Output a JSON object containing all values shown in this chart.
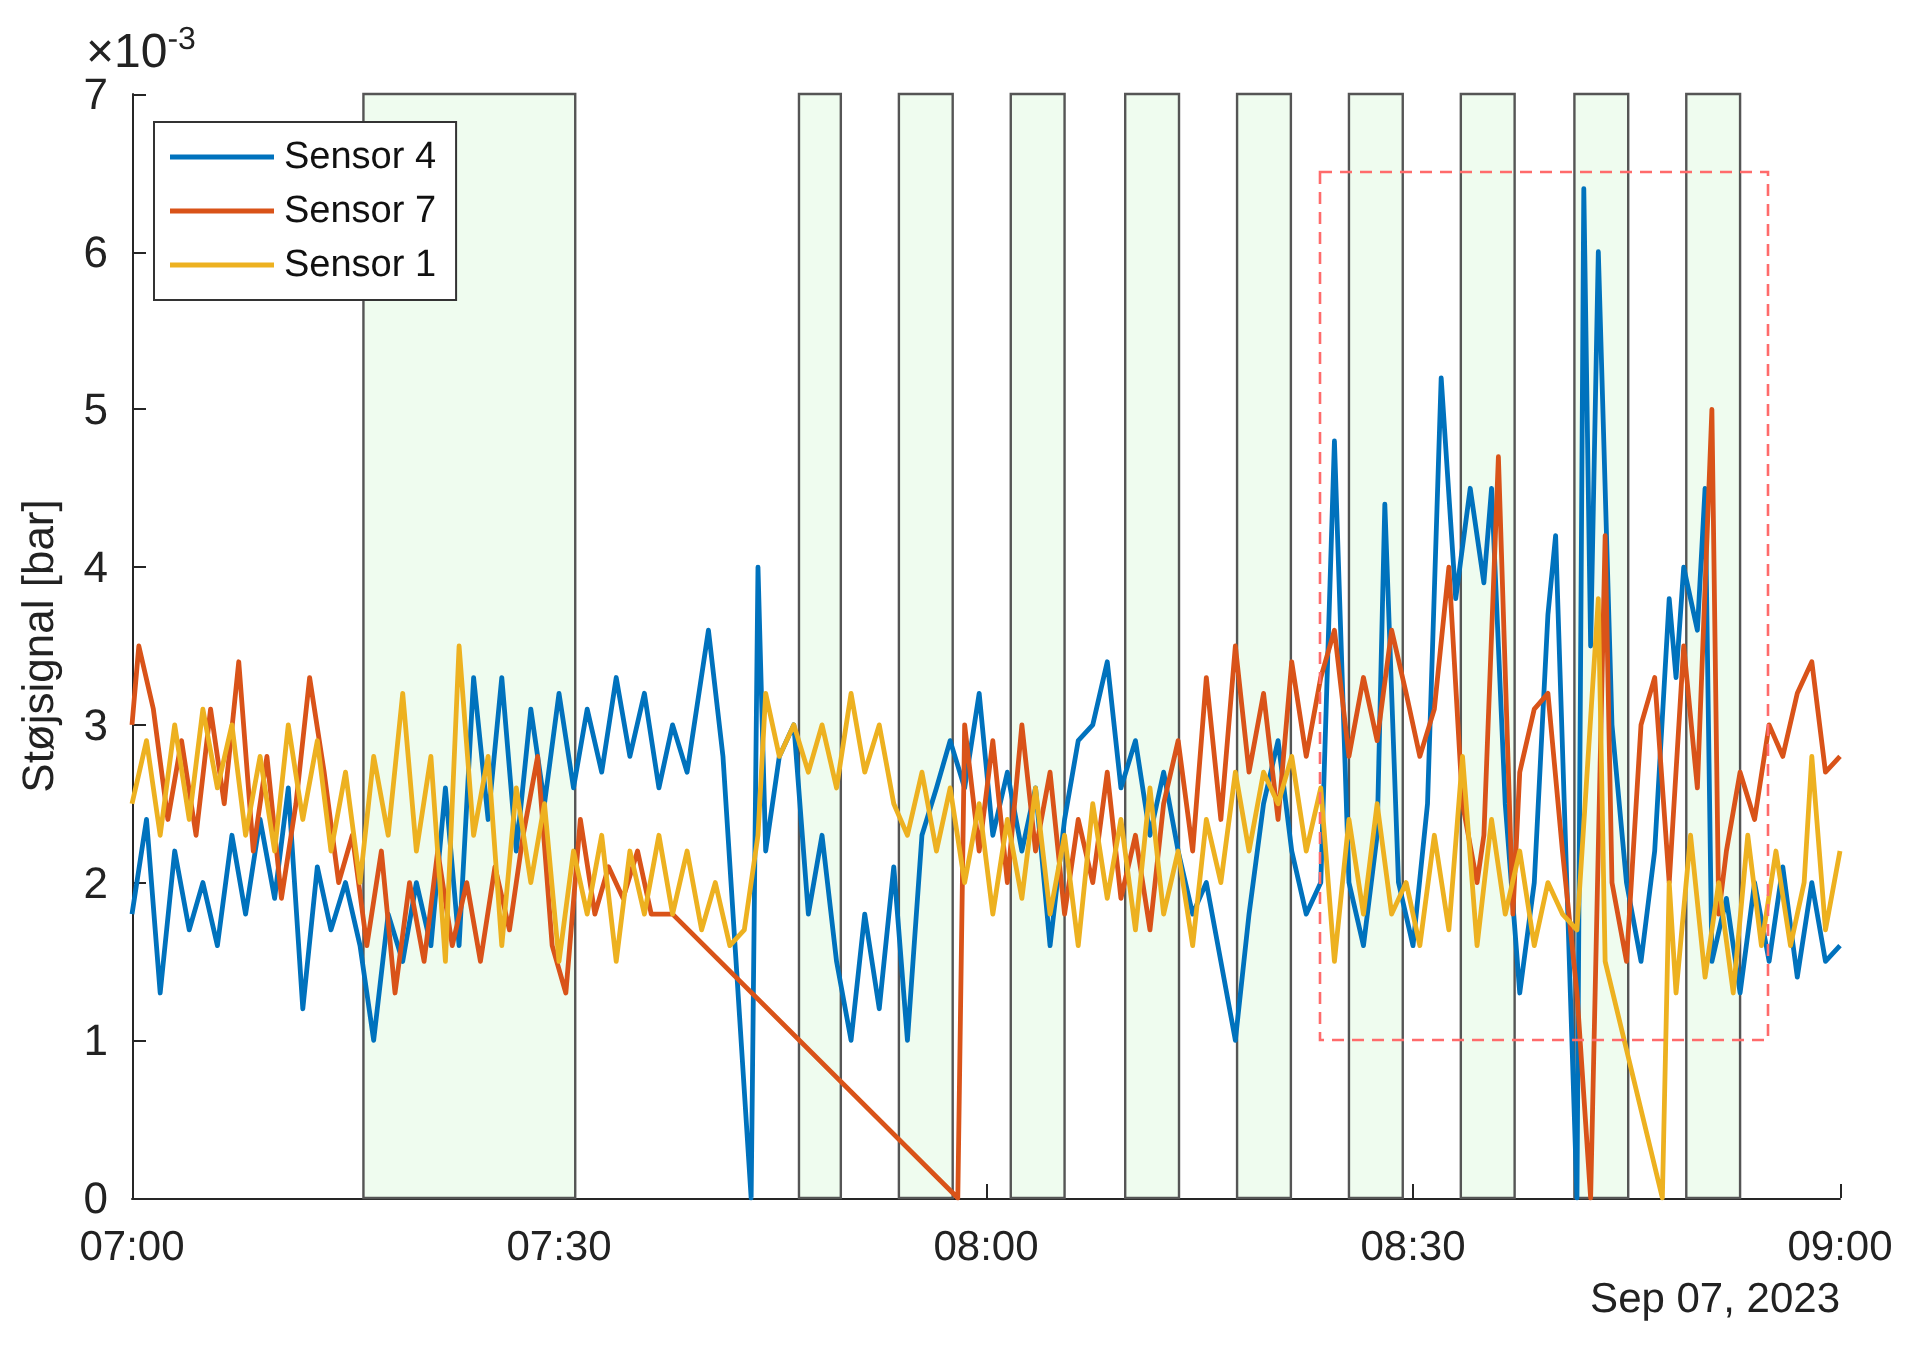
{
  "chart_data": {
    "type": "line",
    "ylabel": "Støjsignal [bar]",
    "annotations": [
      "×10$^{-3}$",
      "Sep 07, 2023"
    ],
    "xlim": [
      7,
      9
    ],
    "xticks": [
      {
        "value": 7,
        "label": "07:00"
      },
      {
        "value": 7.5,
        "label": "07:30"
      },
      {
        "value": 8,
        "label": "08:00"
      },
      {
        "value": 8.5,
        "label": "08:30"
      },
      {
        "value": 9,
        "label": "09:00"
      }
    ],
    "ylim": [
      0,
      7
    ],
    "yticks": [
      0,
      1,
      2,
      3,
      4,
      5,
      6,
      7
    ],
    "grid": false,
    "legend": "top left",
    "marker": "none",
    "line_style": "solid",
    "bands": [
      {
        "axis": "x",
        "from": 7.271,
        "to": 7.519,
        "color": "#effcef"
      },
      {
        "axis": "x",
        "from": 7.781,
        "to": 7.83,
        "color": "#effcef"
      },
      {
        "axis": "x",
        "from": 7.898,
        "to": 7.961,
        "color": "#effcef"
      },
      {
        "axis": "x",
        "from": 8.029,
        "to": 8.092,
        "color": "#effcef"
      },
      {
        "axis": "x",
        "from": 8.163,
        "to": 8.226,
        "color": "#effcef"
      },
      {
        "axis": "x",
        "from": 8.294,
        "to": 8.357,
        "color": "#effcef"
      },
      {
        "axis": "x",
        "from": 8.425,
        "to": 8.488,
        "color": "#effcef"
      },
      {
        "axis": "x",
        "from": 8.556,
        "to": 8.619,
        "color": "#effcef"
      },
      {
        "axis": "x",
        "from": 8.689,
        "to": 8.752,
        "color": "#effcef"
      },
      {
        "axis": "x",
        "from": 8.82,
        "to": 8.883,
        "color": "#effcef"
      }
    ],
    "series": [
      {
        "name": "Sensor 4",
        "color": "#0072bd",
        "x": [
          7.0,
          7.017,
          7.033,
          7.05,
          7.067,
          7.083,
          7.1,
          7.117,
          7.133,
          7.15,
          7.167,
          7.183,
          7.2,
          7.217,
          7.233,
          7.25,
          7.267,
          7.283,
          7.3,
          7.317,
          7.333,
          7.35,
          7.367,
          7.383,
          7.4,
          7.417,
          7.433,
          7.45,
          7.467,
          7.483,
          7.5,
          7.517,
          7.533,
          7.55,
          7.567,
          7.583,
          7.6,
          7.617,
          7.633,
          7.65,
          7.675,
          7.692,
          7.725,
          7.733,
          7.742,
          7.758,
          7.775,
          7.792,
          7.808,
          7.825,
          7.842,
          7.858,
          7.875,
          7.892,
          7.908,
          7.925,
          7.942,
          7.958,
          7.975,
          7.992,
          8.008,
          8.025,
          8.042,
          8.058,
          8.075,
          8.092,
          8.108,
          8.125,
          8.142,
          8.158,
          8.175,
          8.192,
          8.208,
          8.225,
          8.242,
          8.258,
          8.275,
          8.292,
          8.308,
          8.325,
          8.342,
          8.358,
          8.375,
          8.392,
          8.408,
          8.425,
          8.442,
          8.458,
          8.467,
          8.483,
          8.5,
          8.517,
          8.533,
          8.55,
          8.567,
          8.583,
          8.592,
          8.608,
          8.625,
          8.642,
          8.658,
          8.667,
          8.692,
          8.7,
          8.708,
          8.717,
          8.733,
          8.75,
          8.767,
          8.783,
          8.8,
          8.808,
          8.817,
          8.833,
          8.842,
          8.85,
          8.867,
          8.883,
          8.9,
          8.917,
          8.933,
          8.95,
          8.967,
          8.983,
          9.0
        ],
        "values": [
          1.8,
          2.4,
          1.3,
          2.2,
          1.7,
          2.0,
          1.6,
          2.3,
          1.8,
          2.4,
          1.9,
          2.6,
          1.2,
          2.1,
          1.7,
          2.0,
          1.6,
          1.0,
          1.8,
          1.5,
          2.0,
          1.6,
          2.6,
          1.6,
          3.3,
          2.4,
          3.3,
          2.2,
          3.1,
          2.5,
          3.2,
          2.6,
          3.1,
          2.7,
          3.3,
          2.8,
          3.2,
          2.6,
          3.0,
          2.7,
          3.6,
          2.8,
          0,
          4.0,
          2.2,
          2.8,
          3.0,
          1.8,
          2.3,
          1.5,
          1.0,
          1.8,
          1.2,
          2.1,
          1.0,
          2.3,
          2.6,
          2.9,
          2.6,
          3.2,
          2.3,
          2.7,
          2.2,
          2.6,
          1.6,
          2.4,
          2.9,
          3.0,
          3.4,
          2.6,
          2.9,
          2.3,
          2.7,
          2.2,
          1.8,
          2.0,
          1.5,
          1.0,
          1.8,
          2.5,
          2.9,
          2.2,
          1.8,
          2.0,
          4.8,
          2.0,
          1.6,
          2.3,
          4.4,
          2.0,
          1.6,
          2.5,
          5.2,
          3.8,
          4.5,
          3.9,
          4.5,
          2.5,
          1.3,
          2.0,
          3.7,
          4.2,
          0,
          6.4,
          3.5,
          6.0,
          3.0,
          2.0,
          1.5,
          2.2,
          3.8,
          3.3,
          4.0,
          3.6,
          4.5,
          1.5,
          1.9,
          1.3,
          2.0,
          1.5,
          2.1,
          1.4,
          2.0,
          1.5,
          1.6
        ]
      },
      {
        "name": "Sensor 7",
        "color": "#d95319",
        "x": [
          7.0,
          7.008,
          7.025,
          7.042,
          7.058,
          7.075,
          7.092,
          7.108,
          7.125,
          7.142,
          7.158,
          7.175,
          7.192,
          7.208,
          7.225,
          7.242,
          7.258,
          7.275,
          7.292,
          7.308,
          7.325,
          7.342,
          7.358,
          7.375,
          7.392,
          7.408,
          7.425,
          7.442,
          7.458,
          7.475,
          7.492,
          7.508,
          7.525,
          7.542,
          7.558,
          7.575,
          7.592,
          7.608,
          7.633,
          7.967,
          7.975,
          7.992,
          8.008,
          8.025,
          8.042,
          8.058,
          8.075,
          8.092,
          8.108,
          8.125,
          8.142,
          8.158,
          8.175,
          8.192,
          8.208,
          8.225,
          8.242,
          8.258,
          8.275,
          8.292,
          8.308,
          8.325,
          8.342,
          8.358,
          8.375,
          8.392,
          8.408,
          8.425,
          8.442,
          8.458,
          8.475,
          8.492,
          8.508,
          8.525,
          8.542,
          8.558,
          8.575,
          8.583,
          8.6,
          8.617,
          8.625,
          8.642,
          8.658,
          8.675,
          8.692,
          8.708,
          8.725,
          8.733,
          8.75,
          8.767,
          8.783,
          8.8,
          8.817,
          8.833,
          8.85,
          8.858,
          8.867,
          8.883,
          8.9,
          8.917,
          8.933,
          8.95,
          8.967,
          8.983,
          9.0
        ],
        "values": [
          3.0,
          3.5,
          3.1,
          2.4,
          2.9,
          2.3,
          3.1,
          2.5,
          3.4,
          2.2,
          2.8,
          1.9,
          2.5,
          3.3,
          2.7,
          2.0,
          2.3,
          1.6,
          2.2,
          1.3,
          2.0,
          1.5,
          2.2,
          1.6,
          2.0,
          1.5,
          2.1,
          1.7,
          2.3,
          2.8,
          1.6,
          1.3,
          2.4,
          1.8,
          2.1,
          1.9,
          2.2,
          1.8,
          1.8,
          0,
          3.0,
          2.2,
          2.9,
          2.0,
          3.0,
          2.2,
          2.7,
          1.8,
          2.4,
          2.0,
          2.7,
          1.9,
          2.3,
          1.7,
          2.5,
          2.9,
          2.2,
          3.3,
          2.4,
          3.5,
          2.7,
          3.2,
          2.4,
          3.4,
          2.8,
          3.3,
          3.6,
          2.8,
          3.3,
          2.9,
          3.6,
          3.2,
          2.8,
          3.1,
          4.0,
          2.5,
          2.0,
          2.3,
          4.7,
          1.8,
          2.7,
          3.1,
          3.2,
          2.2,
          1.3,
          0,
          4.2,
          2.0,
          1.5,
          3.0,
          3.3,
          2.0,
          3.5,
          2.6,
          5.0,
          1.8,
          2.2,
          2.7,
          2.4,
          3.0,
          2.8,
          3.2,
          3.4,
          2.7,
          2.8
        ]
      },
      {
        "name": "Sensor 1",
        "color": "#edb120",
        "x": [
          7.0,
          7.017,
          7.033,
          7.05,
          7.067,
          7.083,
          7.1,
          7.117,
          7.133,
          7.15,
          7.167,
          7.183,
          7.2,
          7.217,
          7.233,
          7.25,
          7.267,
          7.283,
          7.3,
          7.317,
          7.333,
          7.35,
          7.367,
          7.383,
          7.4,
          7.417,
          7.433,
          7.45,
          7.467,
          7.483,
          7.5,
          7.517,
          7.533,
          7.55,
          7.567,
          7.583,
          7.6,
          7.617,
          7.633,
          7.65,
          7.667,
          7.683,
          7.7,
          7.717,
          7.733,
          7.742,
          7.758,
          7.775,
          7.792,
          7.808,
          7.825,
          7.842,
          7.858,
          7.875,
          7.892,
          7.908,
          7.925,
          7.942,
          7.958,
          7.975,
          7.992,
          8.008,
          8.025,
          8.042,
          8.058,
          8.075,
          8.092,
          8.108,
          8.125,
          8.142,
          8.158,
          8.175,
          8.192,
          8.208,
          8.225,
          8.242,
          8.258,
          8.275,
          8.292,
          8.308,
          8.325,
          8.342,
          8.358,
          8.375,
          8.392,
          8.408,
          8.425,
          8.442,
          8.458,
          8.475,
          8.492,
          8.508,
          8.525,
          8.542,
          8.558,
          8.575,
          8.592,
          8.608,
          8.625,
          8.642,
          8.658,
          8.675,
          8.692,
          8.717,
          8.725,
          8.792,
          8.8,
          8.808,
          8.825,
          8.842,
          8.858,
          8.875,
          8.892,
          8.908,
          8.925,
          8.942,
          8.958,
          8.967,
          8.983,
          9.0
        ],
        "values": [
          2.5,
          2.9,
          2.3,
          3.0,
          2.4,
          3.1,
          2.6,
          3.0,
          2.3,
          2.8,
          2.2,
          3.0,
          2.4,
          2.9,
          2.2,
          2.7,
          2.0,
          2.8,
          2.3,
          3.2,
          2.2,
          2.8,
          1.5,
          3.5,
          2.3,
          2.8,
          1.6,
          2.6,
          2.0,
          2.5,
          1.5,
          2.2,
          1.8,
          2.3,
          1.5,
          2.2,
          1.8,
          2.3,
          1.8,
          2.2,
          1.7,
          2.0,
          1.6,
          1.7,
          2.3,
          3.2,
          2.8,
          3.0,
          2.7,
          3.0,
          2.6,
          3.2,
          2.7,
          3.0,
          2.5,
          2.3,
          2.7,
          2.2,
          2.6,
          2.0,
          2.5,
          1.8,
          2.4,
          1.9,
          2.6,
          1.8,
          2.3,
          1.6,
          2.5,
          1.9,
          2.4,
          1.7,
          2.6,
          1.8,
          2.2,
          1.6,
          2.4,
          2.0,
          2.7,
          2.2,
          2.7,
          2.5,
          2.8,
          2.2,
          2.6,
          1.5,
          2.4,
          1.8,
          2.5,
          1.8,
          2.0,
          1.6,
          2.3,
          1.7,
          2.8,
          1.6,
          2.4,
          1.8,
          2.2,
          1.6,
          2.0,
          1.8,
          1.7,
          3.8,
          1.5,
          0,
          2.0,
          1.3,
          2.3,
          1.4,
          2.0,
          1.3,
          2.3,
          1.6,
          2.2,
          1.6,
          2.0,
          2.8,
          1.7,
          2.2
        ]
      }
    ]
  }
}
